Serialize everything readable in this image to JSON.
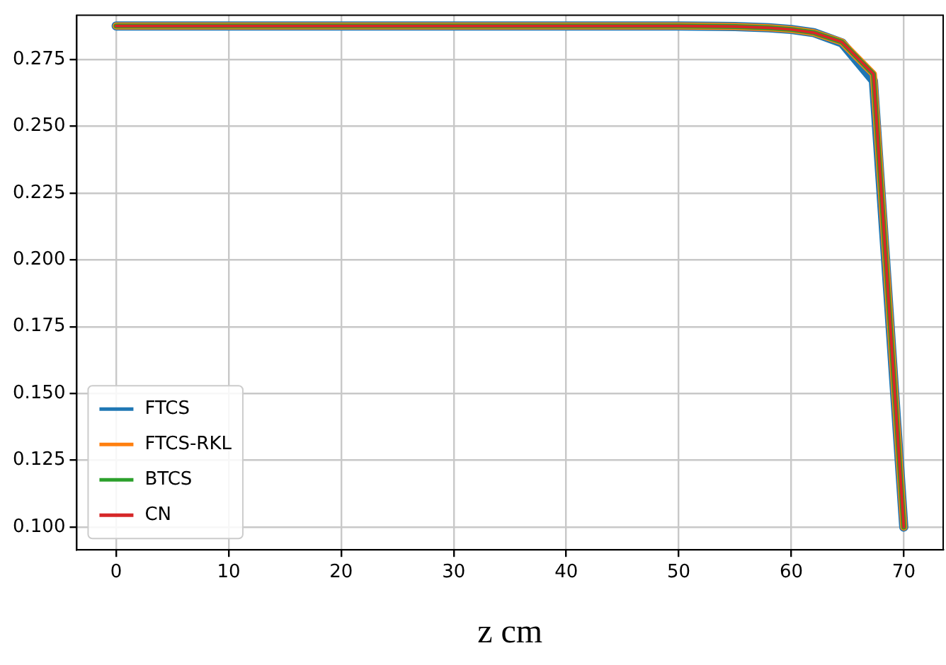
{
  "chart_data": {
    "type": "line",
    "xlabel": "z cm",
    "x": [
      0,
      50,
      55,
      58,
      60,
      62,
      64.5,
      67.3,
      70
    ],
    "series": [
      {
        "name": "FTCS",
        "color": "#1f77b4",
        "values": [
          0.2875,
          0.2875,
          0.2873,
          0.2868,
          0.2862,
          0.285,
          0.2812,
          0.267,
          0.1
        ]
      },
      {
        "name": "FTCS-RKL",
        "color": "#ff7f0e",
        "values": [
          0.2875,
          0.2875,
          0.2873,
          0.2868,
          0.2862,
          0.285,
          0.2815,
          0.2695,
          0.1
        ]
      },
      {
        "name": "BTCS",
        "color": "#2ca02c",
        "values": [
          0.2875,
          0.2875,
          0.2873,
          0.2868,
          0.2862,
          0.285,
          0.2815,
          0.2695,
          0.1
        ]
      },
      {
        "name": "CN",
        "color": "#d62728",
        "values": [
          0.2875,
          0.2875,
          0.2873,
          0.2868,
          0.2862,
          0.285,
          0.2815,
          0.2695,
          0.1
        ]
      }
    ],
    "xlim": [
      -3.5,
      73.5
    ],
    "xticks": [
      0,
      10,
      20,
      30,
      40,
      50,
      60,
      70
    ],
    "ylim": [
      0.0915,
      0.2915
    ],
    "yticks": [
      {
        "value": 0.1,
        "label": "0.100"
      },
      {
        "value": 0.125,
        "label": "0.125"
      },
      {
        "value": 0.15,
        "label": "0.150"
      },
      {
        "value": 0.175,
        "label": "0.175"
      },
      {
        "value": 0.2,
        "label": "0.200"
      },
      {
        "value": 0.225,
        "label": "0.225"
      },
      {
        "value": 0.25,
        "label": "0.250"
      },
      {
        "value": 0.275,
        "label": "0.275"
      }
    ],
    "grid": true,
    "legend": "bottom left",
    "marker": "none",
    "line_style": "solid"
  }
}
